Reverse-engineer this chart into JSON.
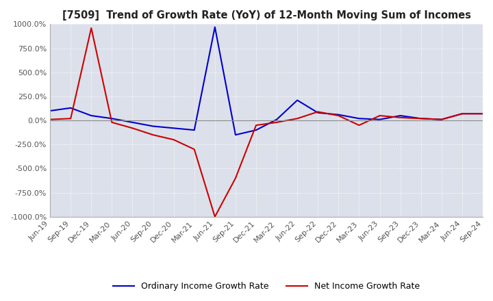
{
  "title": "[7509]  Trend of Growth Rate (YoY) of 12-Month Moving Sum of Incomes",
  "ylim": [
    -1000,
    1000
  ],
  "yticks": [
    1000.0,
    750.0,
    500.0,
    250.0,
    0.0,
    -250.0,
    -500.0,
    -750.0,
    -1000.0
  ],
  "background_color": "#ffffff",
  "plot_bg_color": "#dce0ea",
  "grid_color": "#ffffff",
  "legend": [
    "Ordinary Income Growth Rate",
    "Net Income Growth Rate"
  ],
  "line_colors": [
    "#0000cc",
    "#cc0000"
  ],
  "x_labels": [
    "Jun-19",
    "Sep-19",
    "Dec-19",
    "Mar-20",
    "Jun-20",
    "Sep-20",
    "Dec-20",
    "Mar-21",
    "Jun-21",
    "Sep-21",
    "Dec-21",
    "Mar-22",
    "Jun-22",
    "Sep-22",
    "Dec-22",
    "Mar-23",
    "Jun-23",
    "Sep-23",
    "Dec-23",
    "Mar-24",
    "Jun-24",
    "Sep-24"
  ],
  "ordinary_income": [
    100,
    130,
    50,
    20,
    -20,
    -60,
    -80,
    -100,
    970,
    -150,
    -100,
    10,
    210,
    80,
    60,
    20,
    10,
    50,
    20,
    10,
    70,
    70
  ],
  "net_income": [
    10,
    20,
    960,
    -20,
    -80,
    -150,
    -200,
    -300,
    -1000,
    -600,
    -50,
    -20,
    20,
    90,
    50,
    -50,
    50,
    30,
    20,
    10,
    70,
    70
  ]
}
